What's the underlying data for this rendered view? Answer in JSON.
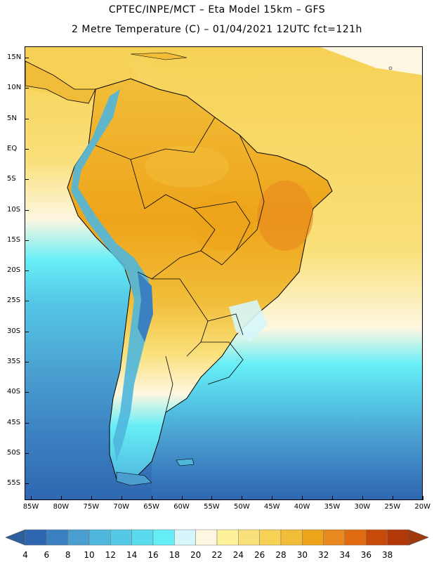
{
  "header": {
    "line1": "CPTEC/INPE/MCT –  Eta Model 15km – GFS",
    "line2": "2 Metre Temperature (C) – 01/04/2021 12UTC fct=121h"
  },
  "axes": {
    "lat_labels": [
      "15N",
      "10N",
      "5N",
      "EQ",
      "5S",
      "10S",
      "15S",
      "20S",
      "25S",
      "30S",
      "35S",
      "40S",
      "45S",
      "50S",
      "55S"
    ],
    "lon_labels": [
      "85W",
      "80W",
      "75W",
      "70W",
      "65W",
      "60W",
      "55W",
      "50W",
      "45W",
      "40W",
      "35W",
      "30W",
      "25W",
      "20W"
    ]
  },
  "colorbar": {
    "labels": [
      "4",
      "6",
      "8",
      "10",
      "12",
      "14",
      "16",
      "18",
      "20",
      "22",
      "24",
      "26",
      "28",
      "30",
      "32",
      "34",
      "36",
      "38"
    ],
    "colors": [
      "#2f66b1",
      "#3b80c1",
      "#4a9fd0",
      "#4fb6dc",
      "#55c8e6",
      "#5adbed",
      "#66eef7",
      "#d6f6fb",
      "#fdf7e1",
      "#fdf29a",
      "#fae07a",
      "#f6d155",
      "#f1bd39",
      "#eea41a",
      "#e8881f",
      "#e06b10",
      "#c84a0a",
      "#b2380a"
    ],
    "low_color": "#2d5e9e",
    "high_color": "#a03a0c"
  },
  "map": {
    "ocean_colors": {
      "warm": "#f6d155",
      "mid": "#fae07a",
      "pale": "#fdf7e1",
      "cool": "#d6f6fb",
      "cyan": "#5adbed",
      "blue": "#4fb6dc",
      "deep": "#3b80c1",
      "deepest": "#2f66b1"
    },
    "land_colors": {
      "hot": "#eea41a",
      "warm": "#f1bd39",
      "andes": "#4fb6dc",
      "andes_high": "#3b80c1"
    }
  }
}
